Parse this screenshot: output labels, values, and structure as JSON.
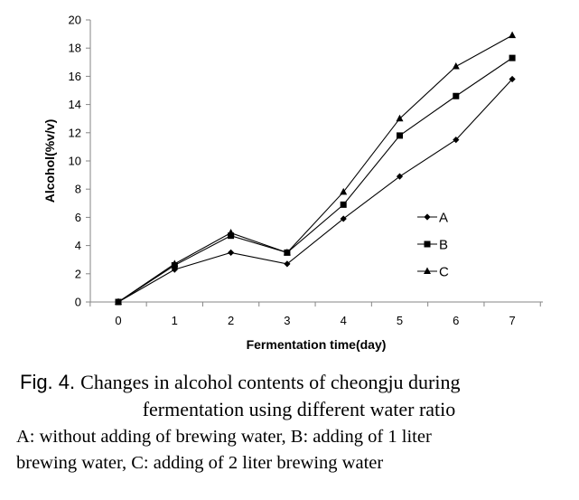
{
  "chart_data": {
    "type": "line",
    "title": "",
    "xlabel": "Fermentation time(day)",
    "ylabel": "Alcohol(%v/v)",
    "x": [
      0,
      1,
      2,
      3,
      4,
      5,
      6,
      7
    ],
    "x_tick_labels": [
      "0",
      "1",
      "2",
      "3",
      "4",
      "5",
      "6",
      "7"
    ],
    "y_tick_labels": [
      "0",
      "2",
      "4",
      "6",
      "8",
      "10",
      "12",
      "14",
      "16",
      "18",
      "20"
    ],
    "ylim": [
      0,
      20
    ],
    "grid": false,
    "legend_position": "right-middle",
    "series": [
      {
        "name": "A",
        "marker": "diamond",
        "values": [
          0,
          2.3,
          3.5,
          2.7,
          5.9,
          8.9,
          11.5,
          15.8
        ]
      },
      {
        "name": "B",
        "marker": "square",
        "values": [
          0,
          2.6,
          4.7,
          3.5,
          6.9,
          11.8,
          14.6,
          17.3
        ]
      },
      {
        "name": "C",
        "marker": "triangle",
        "values": [
          0,
          2.7,
          4.9,
          3.5,
          7.8,
          13.0,
          16.7,
          18.9
        ]
      }
    ]
  },
  "caption": {
    "fig_label": "Fig. 4.",
    "title_line1": "Changes in alcohol contents of cheongju during",
    "title_line2": "fermentation using different water ratio",
    "note_line1": "A: without adding of brewing water, B: adding of 1 liter",
    "note_line2": "brewing water, C: adding of 2 liter brewing water"
  }
}
